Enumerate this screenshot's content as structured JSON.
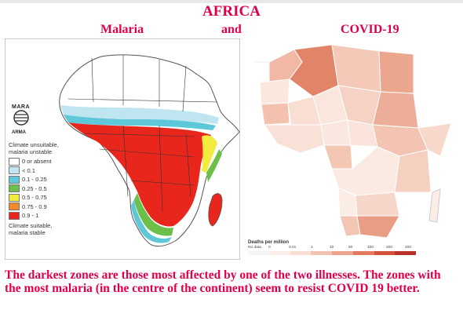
{
  "header": {
    "title": "AFRICA",
    "left_label": "Malaria",
    "middle_label": "and",
    "right_label": "COVID-19"
  },
  "malaria_map": {
    "logo_text_top": "MARA",
    "logo_text_bottom": "ARMA",
    "legend_top": "Climate unsuitable, malaria unstable",
    "legend_items": [
      {
        "label": "0  or absent",
        "color": "#ffffff"
      },
      {
        "label": "< 0.1",
        "color": "#bfe6f0"
      },
      {
        "label": "0.1 - 0.25",
        "color": "#5ec8d8"
      },
      {
        "label": "0.25 - 0.5",
        "color": "#6cc04a"
      },
      {
        "label": "0.5 - 0.75",
        "color": "#f2ea3c"
      },
      {
        "label": "0.75 - 0.9",
        "color": "#f08a2c"
      },
      {
        "label": "0.9 - 1",
        "color": "#e8261c"
      }
    ],
    "legend_bottom": "Climate suitable, malaria stable"
  },
  "covid_map": {
    "legend_title": "Deaths per million",
    "legend_labels": [
      "No data",
      "0",
      "0.01",
      "1",
      "10",
      "50",
      "100",
      "200",
      "400"
    ],
    "scale_colors": [
      "#f5f5f5",
      "#fbeee8",
      "#f8ddd2",
      "#f3c3b2",
      "#eea48c",
      "#e37a60",
      "#d4513d",
      "#b8322a"
    ]
  },
  "caption": "The darkest zones are those most affected by one of the two illnesses. The zones with the most malaria (in the centre of the continent) seem to resist COVID 19 better."
}
